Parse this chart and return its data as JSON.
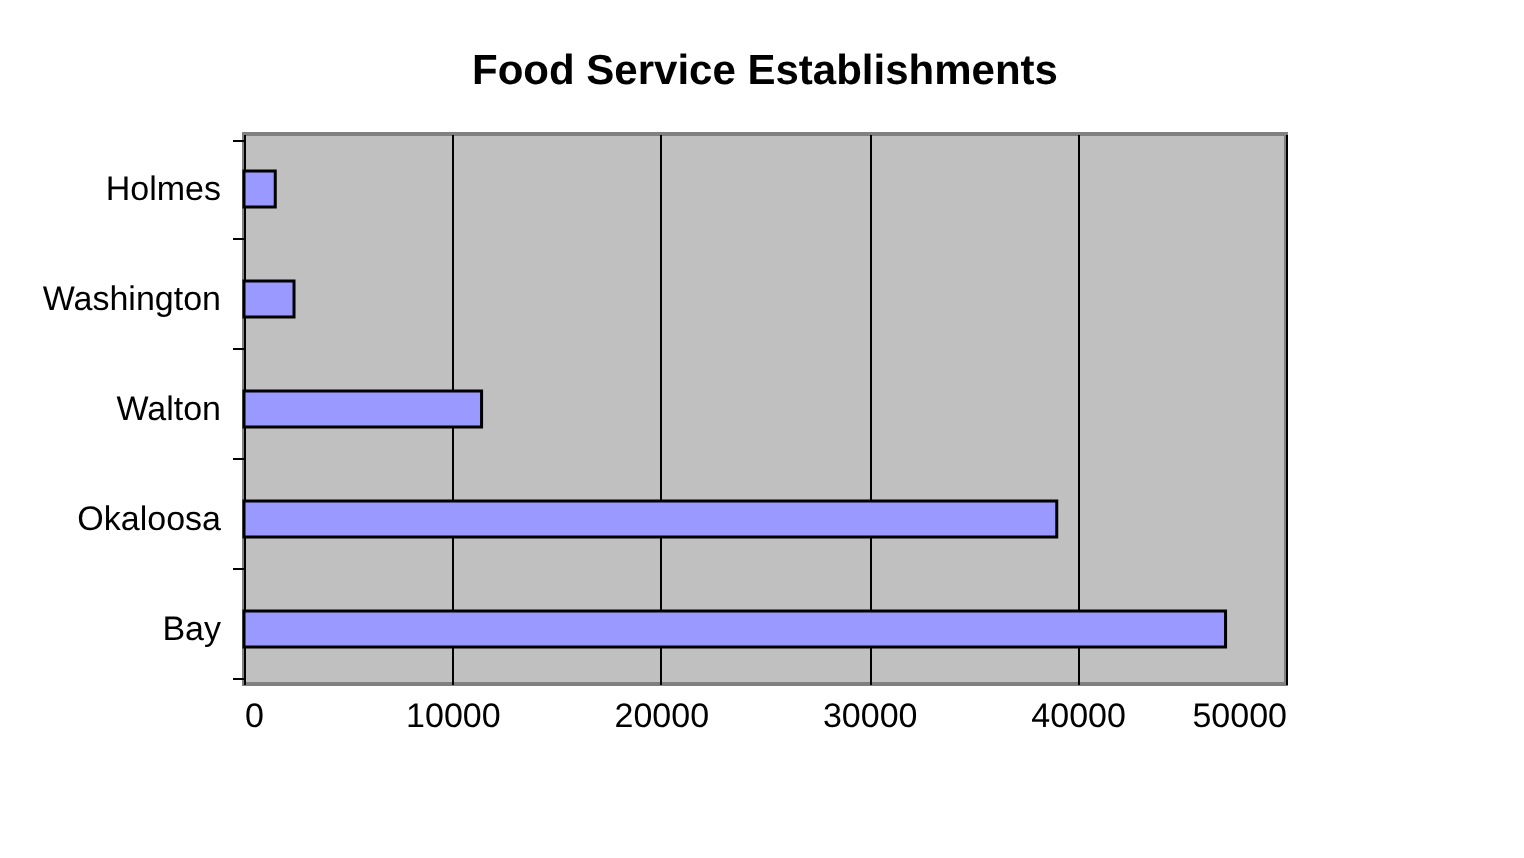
{
  "chart_data": {
    "type": "bar",
    "orientation": "horizontal",
    "title": "Food Service Establishments",
    "categories": [
      "Holmes",
      "Washington",
      "Walton",
      "Okaloosa",
      "Bay"
    ],
    "values": [
      1500,
      2400,
      11400,
      39000,
      47100
    ],
    "color": "#9999ff",
    "xlim": [
      0,
      50000
    ],
    "xticks": [
      0,
      10000,
      20000,
      30000,
      40000,
      50000
    ],
    "grid": "x"
  }
}
